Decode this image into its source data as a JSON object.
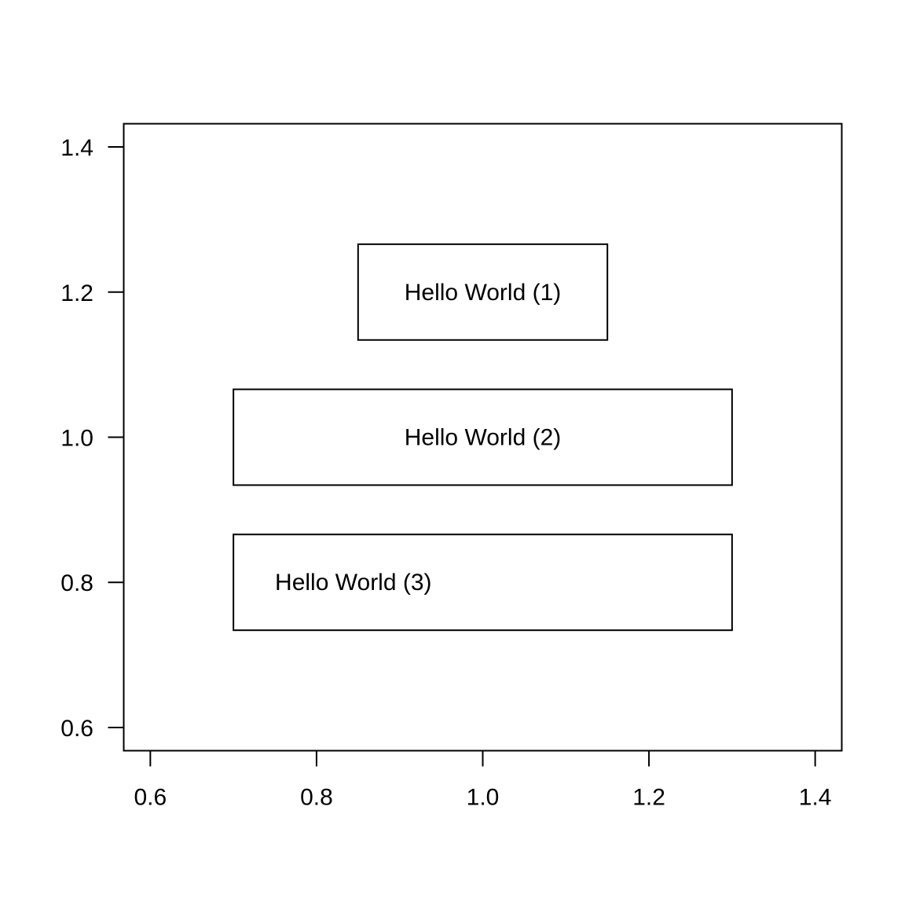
{
  "chart_data": {
    "type": "other",
    "title": "",
    "xlabel": "",
    "ylabel": "",
    "xlim": [
      0.568,
      1.432
    ],
    "ylim": [
      0.568,
      1.432
    ],
    "x_ticks": [
      0.6,
      0.8,
      1.0,
      1.2,
      1.4
    ],
    "y_ticks": [
      0.6,
      0.8,
      1.0,
      1.2,
      1.4
    ],
    "x_tick_labels": [
      "0.6",
      "0.8",
      "1.0",
      "1.2",
      "1.4"
    ],
    "y_tick_labels": [
      "0.6",
      "0.8",
      "1.0",
      "1.2",
      "1.4"
    ],
    "grid": false,
    "annotations": [
      {
        "text": "Hello World (1)",
        "x": 1.0,
        "y": 1.2,
        "align": "center",
        "box": {
          "x0": 0.85,
          "x1": 1.15,
          "y0": 1.134,
          "y1": 1.266
        }
      },
      {
        "text": "Hello World (2)",
        "x": 1.0,
        "y": 1.0,
        "align": "center",
        "box": {
          "x0": 0.7,
          "x1": 1.3,
          "y0": 0.934,
          "y1": 1.066
        }
      },
      {
        "text": "Hello World (3)",
        "x": 0.75,
        "y": 0.8,
        "align": "left",
        "box": {
          "x0": 0.7,
          "x1": 1.3,
          "y0": 0.734,
          "y1": 0.866
        }
      }
    ]
  }
}
